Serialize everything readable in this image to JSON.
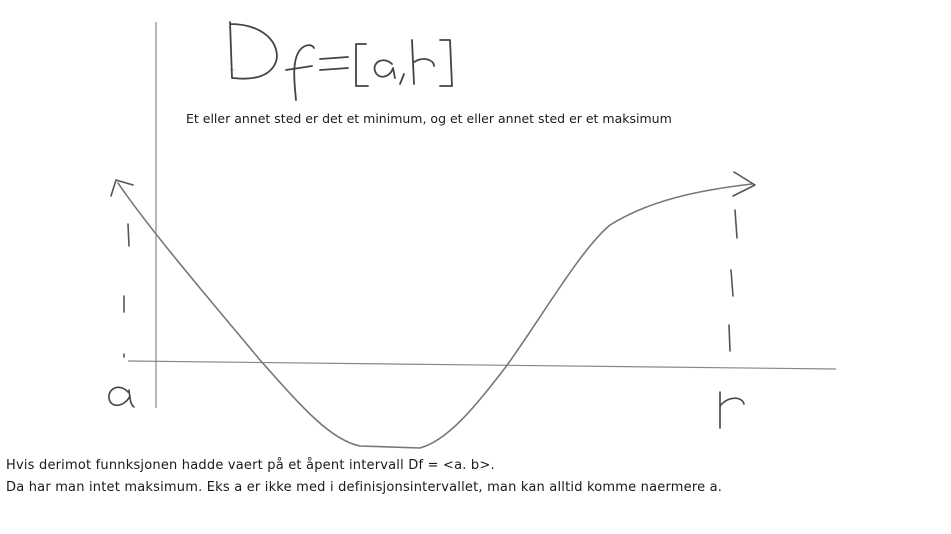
{
  "diagram": {
    "formula": "Df = [a, b]",
    "subtitle": "Et eller annet sted er det et minimum, og et eller annet sted er et maksimum",
    "label_a": "a",
    "label_b": "b",
    "note_line1": "Hvis derimot funnksjonen hadde vaert på et åpent intervall Df = <a. b>.",
    "note_line2": "Da har man intet maksimum. Eks a er ikke med i definisjonsintervallet, man kan alltid komme naermere a.",
    "stroke_color": "#777777",
    "ink_color": "#1a1a1a"
  }
}
